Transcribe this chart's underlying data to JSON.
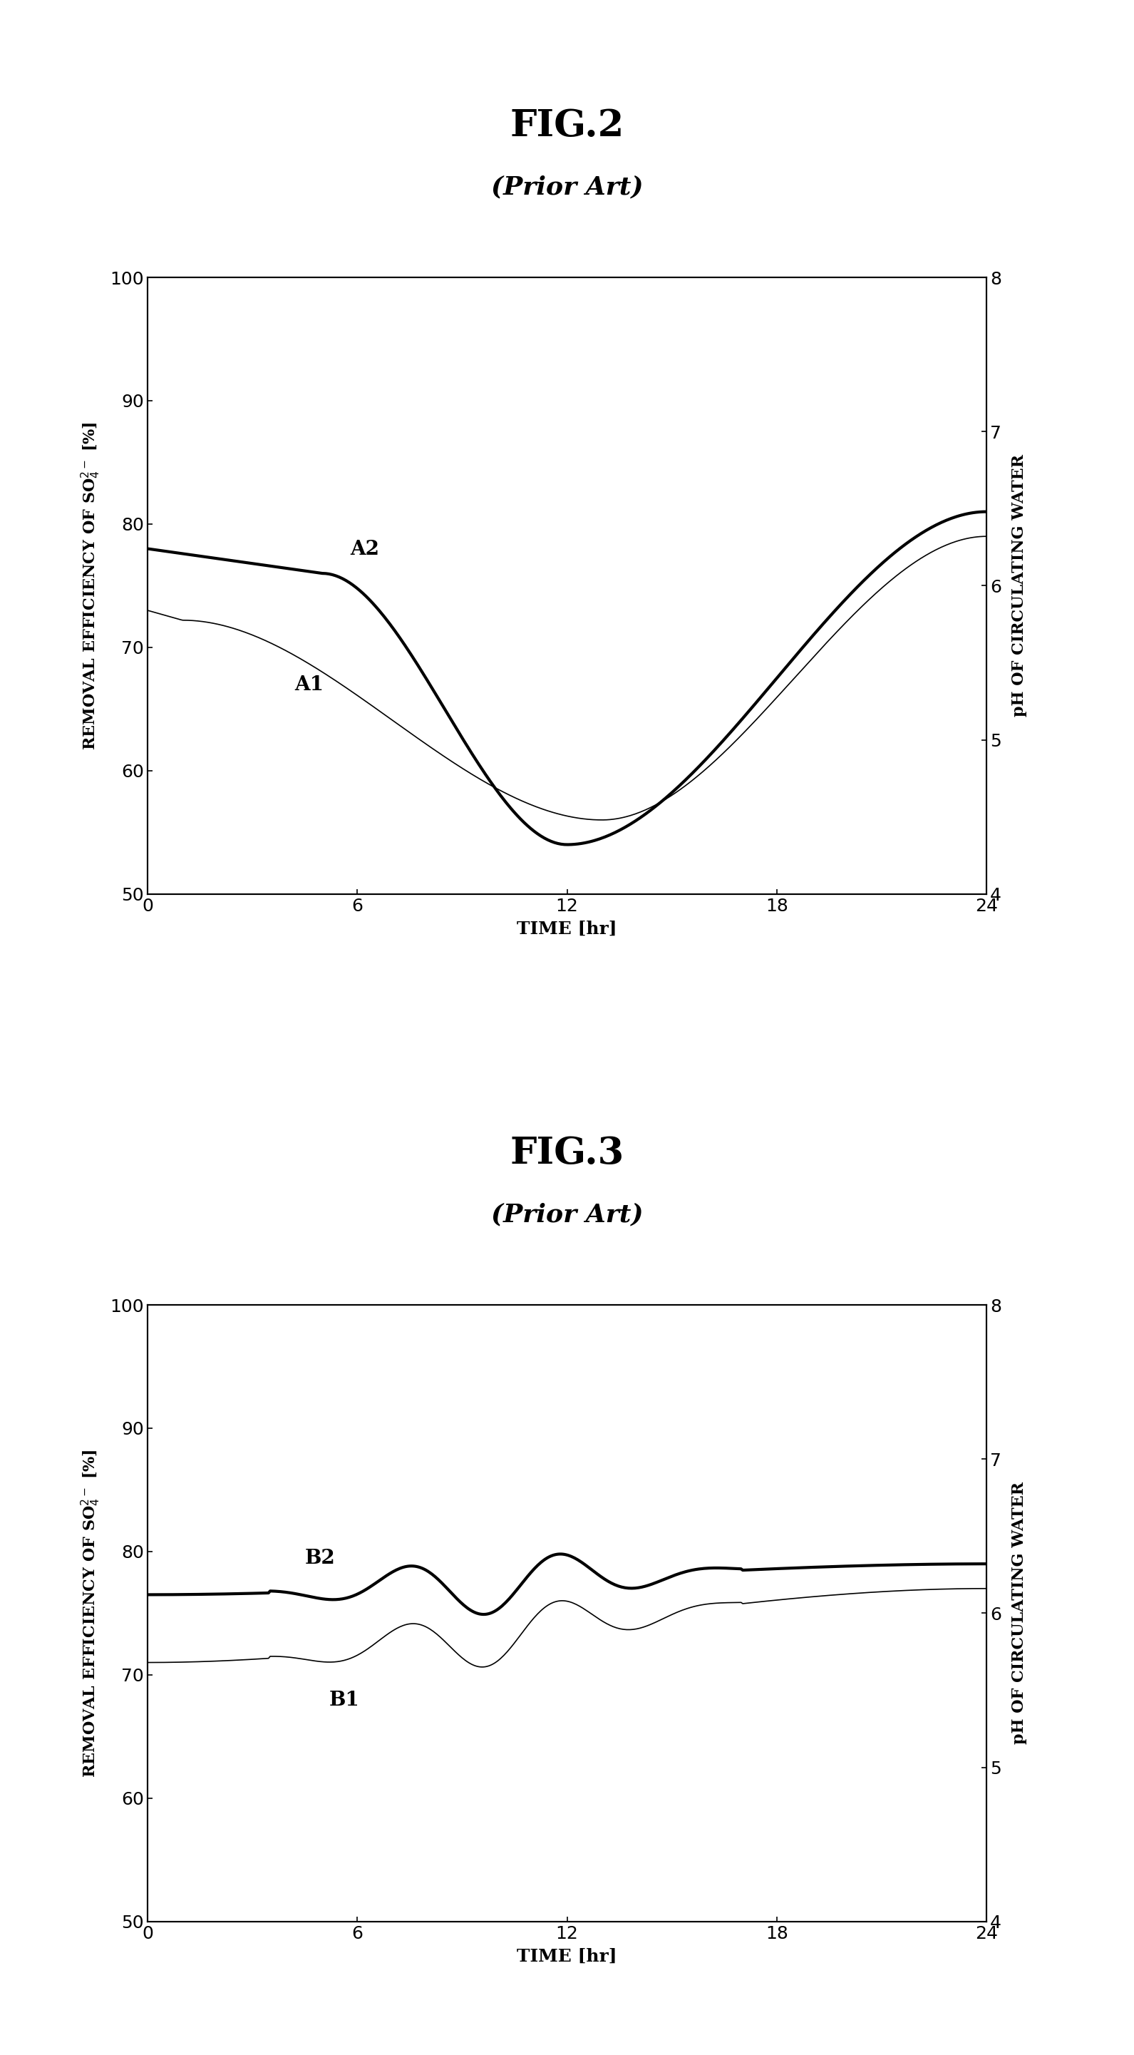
{
  "fig2_title": "FIG.2",
  "fig2_subtitle": "(Prior Art)",
  "fig3_title": "FIG.3",
  "fig3_subtitle": "(Prior Art)",
  "xlabel": "TIME [hr]",
  "ylabel_left": "REMOVAL EFFICIENCY OF SO$_4^{2-}$ [%]",
  "ylabel_right": "pH OF CIRCULATING WATER",
  "xlim": [
    0,
    24
  ],
  "ylim_left": [
    50,
    100
  ],
  "ylim_right": [
    4,
    8
  ],
  "xticks": [
    0,
    6,
    12,
    18,
    24
  ],
  "yticks_left": [
    50,
    60,
    70,
    80,
    90,
    100
  ],
  "yticks_right": [
    4,
    5,
    6,
    7,
    8
  ],
  "label_A2": "A2",
  "label_A1": "A1",
  "label_B2": "B2",
  "label_B1": "B1",
  "background": "#ffffff",
  "line_color": "#000000"
}
